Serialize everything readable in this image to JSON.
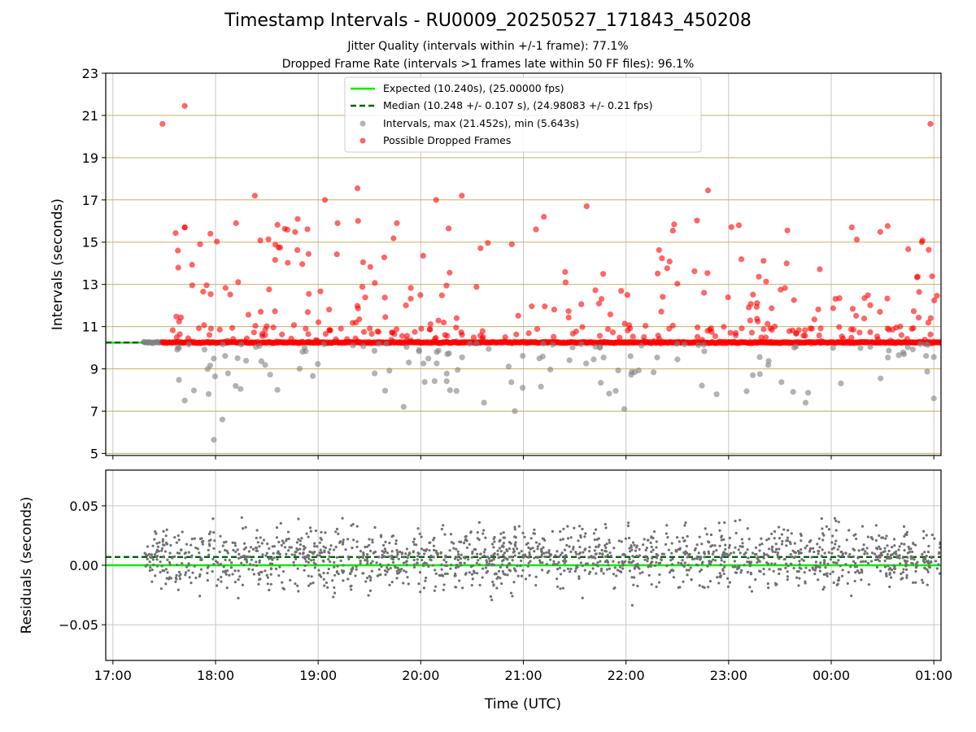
{
  "chart_data": [
    {
      "type": "scatter",
      "title": "Timestamp Intervals - RU0009_20250527_171843_450208",
      "subtitles": [
        "Jitter Quality (intervals within +/-1 frame): 77.1%",
        "Dropped Frame Rate (intervals >1 frames late within 50 FF files): 96.1%"
      ],
      "ylabel": "Intervals (seconds)",
      "ylim": [
        4.9,
        23
      ],
      "yticks": [
        5,
        7,
        9,
        11,
        13,
        15,
        17,
        19,
        21,
        23
      ],
      "xlim": [
        16.93,
        25.07
      ],
      "xticks": [
        "17:00",
        "18:00",
        "19:00",
        "20:00",
        "21:00",
        "22:00",
        "23:00",
        "00:00",
        "01:00"
      ],
      "legend_position": "top-center",
      "legend": [
        "Expected (10.240s), (25.00000 fps)",
        "Median (10.248 +/- 0.107 s), (24.98083 +/- 0.21 fps)",
        "Intervals, max (21.452s), min (5.643s)",
        "Possible Dropped Frames"
      ],
      "expected_interval": 10.24,
      "median_interval": 10.248,
      "time_start": "17:18",
      "time_end": "01:04",
      "baseline_interval": 10.25,
      "max_interval": 21.452,
      "min_interval": 5.643,
      "dropped_frame_examples": [
        {
          "x": "17:29",
          "y": 20.6
        },
        {
          "x": "17:42",
          "y": 21.45
        },
        {
          "x": "17:42",
          "y": 15.7
        },
        {
          "x": "17:38",
          "y": 14.6
        },
        {
          "x": "17:51",
          "y": 14.9
        },
        {
          "x": "17:57",
          "y": 15.4
        },
        {
          "x": "18:12",
          "y": 15.9
        },
        {
          "x": "18:23",
          "y": 17.2
        },
        {
          "x": "18:48",
          "y": 16.1
        },
        {
          "x": "19:04",
          "y": 17.0
        },
        {
          "x": "19:23",
          "y": 17.55
        },
        {
          "x": "19:46",
          "y": 15.9
        },
        {
          "x": "20:09",
          "y": 17.0
        },
        {
          "x": "20:24",
          "y": 17.2
        },
        {
          "x": "21:12",
          "y": 16.2
        },
        {
          "x": "21:37",
          "y": 16.7
        },
        {
          "x": "22:48",
          "y": 17.45
        },
        {
          "x": "23:06",
          "y": 15.8
        },
        {
          "x": "00:12",
          "y": 15.7
        },
        {
          "x": "00:58",
          "y": 20.6
        },
        {
          "x": "00:53",
          "y": 15.0
        }
      ],
      "low_interval_examples": [
        {
          "x": "17:42",
          "y": 7.5
        },
        {
          "x": "17:59",
          "y": 5.64
        },
        {
          "x": "18:04",
          "y": 6.6
        },
        {
          "x": "19:50",
          "y": 7.2
        },
        {
          "x": "20:37",
          "y": 7.4
        },
        {
          "x": "20:55",
          "y": 7.0
        },
        {
          "x": "21:59",
          "y": 7.1
        },
        {
          "x": "22:53",
          "y": 7.8
        },
        {
          "x": "23:45",
          "y": 7.4
        },
        {
          "x": "01:00",
          "y": 7.6
        }
      ],
      "colors": {
        "expected": "#00ee00",
        "median": "#006400",
        "intervals": "#808080",
        "dropped": "#ff0000",
        "y_gridlines": "#c8b163"
      }
    },
    {
      "type": "scatter",
      "ylabel": "Residuals (seconds)",
      "xlabel": "Time (UTC)",
      "ylim": [
        -0.08,
        0.08
      ],
      "yticks": [
        "0.05",
        "0.00",
        "−0.05"
      ],
      "ytick_values": [
        0.05,
        0.0,
        -0.05
      ],
      "xlim": [
        16.93,
        25.07
      ],
      "xticks": [
        "17:00",
        "18:00",
        "19:00",
        "20:00",
        "21:00",
        "22:00",
        "23:00",
        "00:00",
        "01:00"
      ],
      "expected_residual": 0.0,
      "median_residual": 0.007,
      "residual_spread": 0.02,
      "colors": {
        "expected": "#00ee00",
        "median": "#006400",
        "residuals": "#707070"
      }
    }
  ]
}
